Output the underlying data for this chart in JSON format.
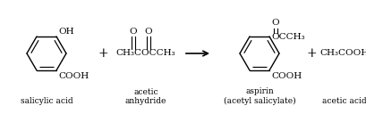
{
  "bg_color": "#ffffff",
  "fig_width": 4.1,
  "fig_height": 1.28,
  "dpi": 100,
  "label_salicylic": "salicylic acid",
  "label_acetic_anhydride": "acetic\nanhydride",
  "label_aspirin": "aspirin\n(acetyl salicylate)",
  "label_acetic_acid": "acetic acid",
  "font_size_labels": 6.5,
  "font_size_chem": 7.5,
  "font_size_plus": 10
}
